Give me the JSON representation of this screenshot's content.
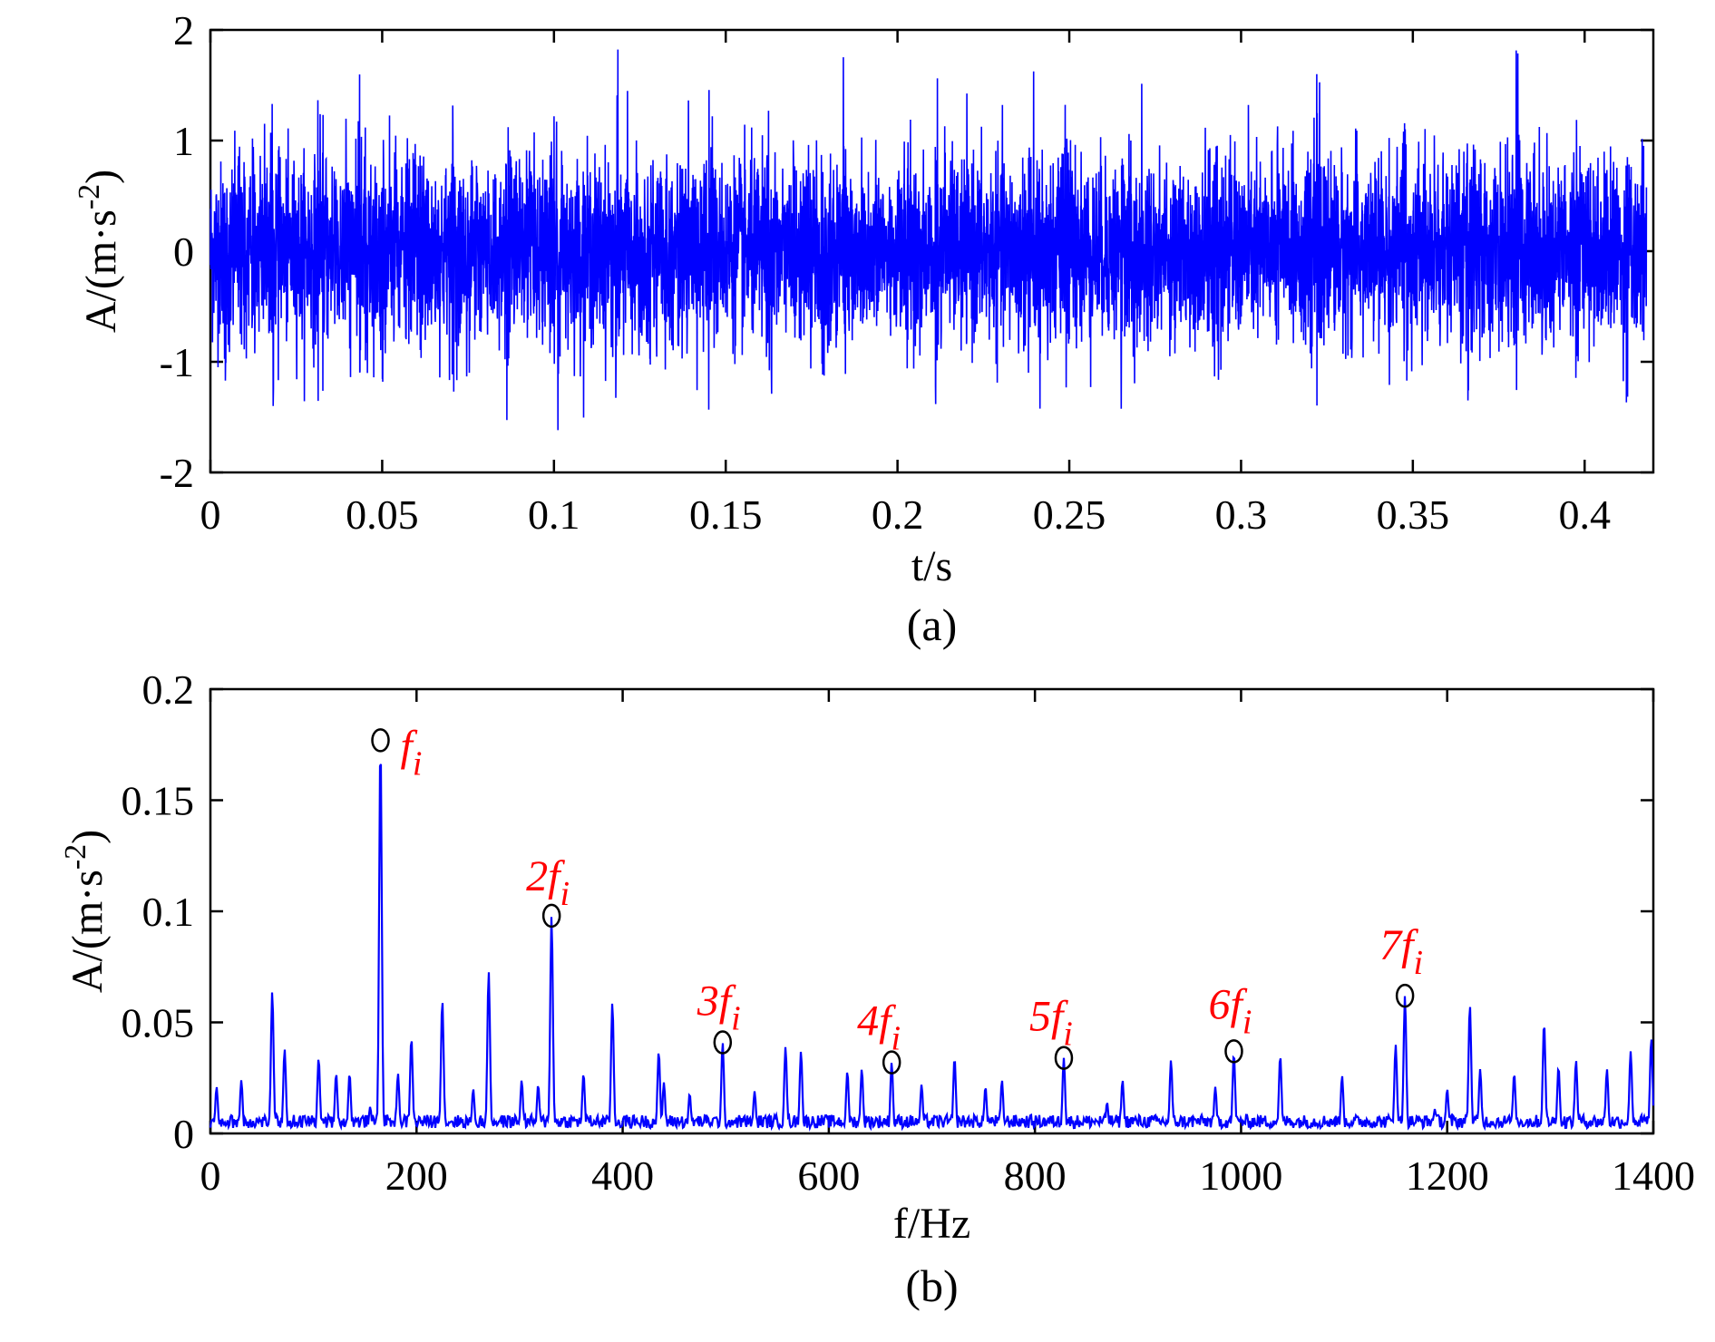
{
  "panels": [
    {
      "caption": "(a)",
      "chart_data": {
        "type": "line",
        "xlabel": "t/s",
        "ylabel_main": "A/(m·s",
        "ylabel_sup": "-2",
        "ylabel_close": ")",
        "xlim": [
          0,
          0.42
        ],
        "ylim": [
          -2,
          2
        ],
        "xticks": [
          0,
          0.05,
          0.1,
          0.15,
          0.2,
          0.25,
          0.3,
          0.35,
          0.4
        ],
        "xtick_labels": [
          "0",
          "0.05",
          "0.1",
          "0.15",
          "0.2",
          "0.25",
          "0.3",
          "0.35",
          "0.4"
        ],
        "yticks": [
          -2,
          -1,
          0,
          1,
          2
        ],
        "ytick_labels": [
          "-2",
          "-1",
          "0",
          "1",
          "2"
        ],
        "grid": false,
        "color": "#0000ff",
        "signal": {
          "description_type": "random vibration time signal",
          "t_start": 0,
          "t_end": 0.418,
          "rms": 0.4,
          "peak_max": 1.85,
          "peak_min": -1.85,
          "impact_times": [
            0.004,
            0.017,
            0.031,
            0.043,
            0.05,
            0.061,
            0.07,
            0.086,
            0.092,
            0.1,
            0.118,
            0.145,
            0.162,
            0.178,
            0.184,
            0.211,
            0.238,
            0.249,
            0.265,
            0.292,
            0.31,
            0.322,
            0.347,
            0.366,
            0.38,
            0.397,
            0.412
          ]
        }
      }
    },
    {
      "caption": "(b)",
      "chart_data": {
        "type": "line",
        "xlabel": "f/Hz",
        "ylabel_main": "A/(m·s",
        "ylabel_sup": "-2",
        "ylabel_close": ")",
        "xlim": [
          0,
          1400
        ],
        "ylim": [
          0,
          0.2
        ],
        "xticks": [
          0,
          200,
          400,
          600,
          800,
          1000,
          1200,
          1400
        ],
        "xtick_labels": [
          "0",
          "200",
          "400",
          "600",
          "800",
          "1000",
          "1200",
          "1400"
        ],
        "yticks": [
          0,
          0.05,
          0.1,
          0.15,
          0.2
        ],
        "ytick_labels": [
          "0",
          "0.05",
          "0.1",
          "0.15",
          "0.2"
        ],
        "grid": false,
        "color": "#0000ff",
        "baseline": 0.006,
        "peaks": [
          {
            "f": 6,
            "a": 0.021
          },
          {
            "f": 30,
            "a": 0.024
          },
          {
            "f": 60,
            "a": 0.064
          },
          {
            "f": 72,
            "a": 0.038
          },
          {
            "f": 105,
            "a": 0.034
          },
          {
            "f": 122,
            "a": 0.027
          },
          {
            "f": 135,
            "a": 0.027
          },
          {
            "f": 155,
            "a": 0.012
          },
          {
            "f": 165,
            "a": 0.176
          },
          {
            "f": 182,
            "a": 0.027
          },
          {
            "f": 195,
            "a": 0.043
          },
          {
            "f": 225,
            "a": 0.06
          },
          {
            "f": 255,
            "a": 0.02
          },
          {
            "f": 270,
            "a": 0.073
          },
          {
            "f": 302,
            "a": 0.024
          },
          {
            "f": 318,
            "a": 0.022
          },
          {
            "f": 331,
            "a": 0.098
          },
          {
            "f": 362,
            "a": 0.027
          },
          {
            "f": 390,
            "a": 0.059
          },
          {
            "f": 435,
            "a": 0.037
          },
          {
            "f": 440,
            "a": 0.023
          },
          {
            "f": 465,
            "a": 0.018
          },
          {
            "f": 497,
            "a": 0.041
          },
          {
            "f": 528,
            "a": 0.019
          },
          {
            "f": 558,
            "a": 0.039
          },
          {
            "f": 573,
            "a": 0.037
          },
          {
            "f": 618,
            "a": 0.028
          },
          {
            "f": 632,
            "a": 0.029
          },
          {
            "f": 661,
            "a": 0.032
          },
          {
            "f": 690,
            "a": 0.022
          },
          {
            "f": 722,
            "a": 0.034
          },
          {
            "f": 752,
            "a": 0.021
          },
          {
            "f": 768,
            "a": 0.024
          },
          {
            "f": 828,
            "a": 0.034
          },
          {
            "f": 870,
            "a": 0.014
          },
          {
            "f": 885,
            "a": 0.024
          },
          {
            "f": 932,
            "a": 0.033
          },
          {
            "f": 975,
            "a": 0.021
          },
          {
            "f": 993,
            "a": 0.036
          },
          {
            "f": 1038,
            "a": 0.035
          },
          {
            "f": 1098,
            "a": 0.026
          },
          {
            "f": 1150,
            "a": 0.04
          },
          {
            "f": 1159,
            "a": 0.062
          },
          {
            "f": 1188,
            "a": 0.011
          },
          {
            "f": 1200,
            "a": 0.02
          },
          {
            "f": 1222,
            "a": 0.058
          },
          {
            "f": 1232,
            "a": 0.029
          },
          {
            "f": 1265,
            "a": 0.027
          },
          {
            "f": 1294,
            "a": 0.05
          },
          {
            "f": 1308,
            "a": 0.03
          },
          {
            "f": 1325,
            "a": 0.033
          },
          {
            "f": 1355,
            "a": 0.029
          },
          {
            "f": 1378,
            "a": 0.037
          },
          {
            "f": 1398,
            "a": 0.043
          }
        ],
        "annotations": [
          {
            "f": 165,
            "a": 0.177,
            "prefix": "",
            "label": "f",
            "sub": "i"
          },
          {
            "f": 331,
            "a": 0.098,
            "prefix": "2",
            "label": "f",
            "sub": "i"
          },
          {
            "f": 497,
            "a": 0.041,
            "prefix": "3",
            "label": "f",
            "sub": "i"
          },
          {
            "f": 661,
            "a": 0.032,
            "prefix": "4",
            "label": "f",
            "sub": "i"
          },
          {
            "f": 828,
            "a": 0.034,
            "prefix": "5",
            "label": "f",
            "sub": "i"
          },
          {
            "f": 993,
            "a": 0.037,
            "prefix": "6",
            "label": "f",
            "sub": "i"
          },
          {
            "f": 1159,
            "a": 0.062,
            "prefix": "7",
            "label": "f",
            "sub": "i"
          }
        ],
        "annotation_color": "#ff0000",
        "marker_color": "#000000"
      }
    }
  ]
}
